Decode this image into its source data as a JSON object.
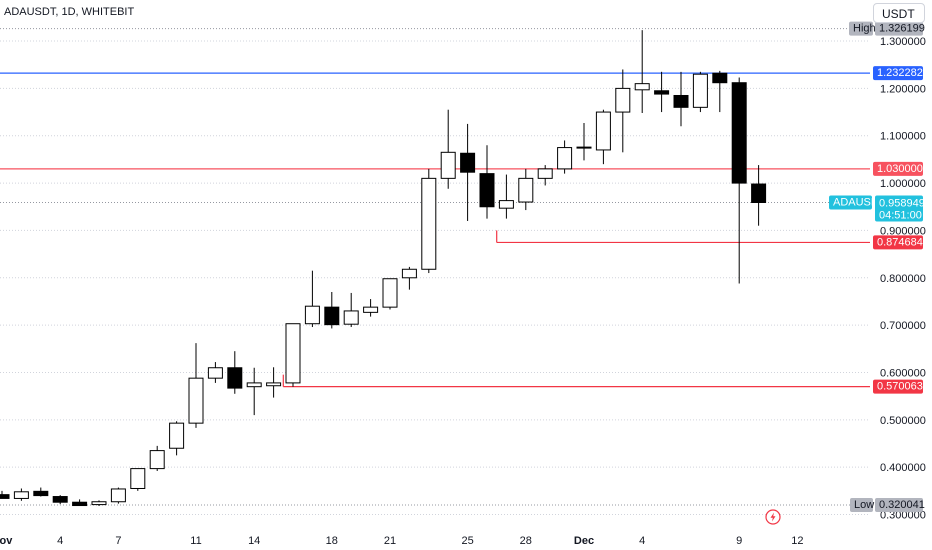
{
  "header": {
    "symbol_line": "ADAUSDT, 1D, WHITEBIT",
    "currency_button": "USDT"
  },
  "colors": {
    "up_body": "#ffffff",
    "down_body": "#000000",
    "candle_outline": "#000000",
    "blue_line": "#2962ff",
    "red_line": "#f23645",
    "pink_line": "#f7525f",
    "current_price_tag": "#22c1de",
    "high_low_tag": "#b2b5be",
    "grid": "#d1d4dc"
  },
  "icons": {
    "bottom_marker": "lightning-bolt-icon"
  },
  "chart_data": {
    "type": "candlestick",
    "symbol": "ADAUSDT",
    "interval": "1D",
    "exchange": "WHITEBIT",
    "quote_currency": "USDT",
    "y_range": [
      0.28,
      1.355
    ],
    "y_ticks": [
      {
        "value": 0.3,
        "label": "0.300000"
      },
      {
        "value": 0.4,
        "label": "0.400000"
      },
      {
        "value": 0.5,
        "label": "0.500000"
      },
      {
        "value": 0.6,
        "label": "0.600000"
      },
      {
        "value": 0.7,
        "label": "0.700000"
      },
      {
        "value": 0.8,
        "label": "0.800000"
      },
      {
        "value": 0.9,
        "label": "0.900000"
      },
      {
        "value": 1.0,
        "label": "1.000000"
      },
      {
        "value": 1.1,
        "label": "1.100000"
      },
      {
        "value": 1.2,
        "label": "1.200000"
      },
      {
        "value": 1.3,
        "label": "1.300000"
      }
    ],
    "x_labels": [
      {
        "day": 0,
        "label": "Nov",
        "month": true
      },
      {
        "day": 3,
        "label": "4",
        "month": false
      },
      {
        "day": 6,
        "label": "7",
        "month": false
      },
      {
        "day": 10,
        "label": "11",
        "month": false
      },
      {
        "day": 13,
        "label": "14",
        "month": false
      },
      {
        "day": 17,
        "label": "18",
        "month": false
      },
      {
        "day": 20,
        "label": "21",
        "month": false
      },
      {
        "day": 24,
        "label": "25",
        "month": false
      },
      {
        "day": 27,
        "label": "28",
        "month": false
      },
      {
        "day": 30,
        "label": "Dec",
        "month": true
      },
      {
        "day": 33,
        "label": "4",
        "month": false
      },
      {
        "day": 38,
        "label": "9",
        "month": false
      },
      {
        "day": 41,
        "label": "12",
        "month": false
      }
    ],
    "candles": [
      {
        "day": 0,
        "date": "Nov 1",
        "open": 0.342,
        "high": 0.35,
        "low": 0.335,
        "close": 0.334
      },
      {
        "day": 1,
        "date": "Nov 2",
        "open": 0.334,
        "high": 0.355,
        "low": 0.329,
        "close": 0.348
      },
      {
        "day": 2,
        "date": "Nov 3",
        "open": 0.349,
        "high": 0.357,
        "low": 0.338,
        "close": 0.34
      },
      {
        "day": 3,
        "date": "Nov 4",
        "open": 0.338,
        "high": 0.341,
        "low": 0.322,
        "close": 0.326
      },
      {
        "day": 4,
        "date": "Nov 5",
        "open": 0.326,
        "high": 0.332,
        "low": 0.32,
        "close": 0.319
      },
      {
        "day": 5,
        "date": "Nov 6",
        "open": 0.321,
        "high": 0.33,
        "low": 0.318,
        "close": 0.327
      },
      {
        "day": 6,
        "date": "Nov 7",
        "open": 0.327,
        "high": 0.357,
        "low": 0.323,
        "close": 0.354
      },
      {
        "day": 7,
        "date": "Nov 8",
        "open": 0.355,
        "high": 0.395,
        "low": 0.35,
        "close": 0.397
      },
      {
        "day": 8,
        "date": "Nov 9",
        "open": 0.397,
        "high": 0.445,
        "low": 0.392,
        "close": 0.435
      },
      {
        "day": 9,
        "date": "Nov 10",
        "open": 0.44,
        "high": 0.497,
        "low": 0.425,
        "close": 0.493
      },
      {
        "day": 10,
        "date": "Nov 11",
        "open": 0.493,
        "high": 0.662,
        "low": 0.483,
        "close": 0.588
      },
      {
        "day": 11,
        "date": "Nov 12",
        "open": 0.588,
        "high": 0.622,
        "low": 0.578,
        "close": 0.61
      },
      {
        "day": 12,
        "date": "Nov 13",
        "open": 0.61,
        "high": 0.645,
        "low": 0.555,
        "close": 0.567
      },
      {
        "day": 13,
        "date": "Nov 14",
        "open": 0.57,
        "high": 0.61,
        "low": 0.51,
        "close": 0.578
      },
      {
        "day": 14,
        "date": "Nov 15",
        "open": 0.572,
        "high": 0.611,
        "low": 0.547,
        "close": 0.578
      },
      {
        "day": 15,
        "date": "Nov 16",
        "open": 0.578,
        "high": 0.703,
        "low": 0.57,
        "close": 0.703
      },
      {
        "day": 16,
        "date": "Nov 17",
        "open": 0.703,
        "high": 0.815,
        "low": 0.696,
        "close": 0.74
      },
      {
        "day": 17,
        "date": "Nov 18",
        "open": 0.738,
        "high": 0.77,
        "low": 0.693,
        "close": 0.701
      },
      {
        "day": 18,
        "date": "Nov 19",
        "open": 0.702,
        "high": 0.768,
        "low": 0.696,
        "close": 0.73
      },
      {
        "day": 19,
        "date": "Nov 20",
        "open": 0.727,
        "high": 0.755,
        "low": 0.718,
        "close": 0.738
      },
      {
        "day": 20,
        "date": "Nov 21",
        "open": 0.738,
        "high": 0.79,
        "low": 0.733,
        "close": 0.798
      },
      {
        "day": 21,
        "date": "Nov 22",
        "open": 0.8,
        "high": 0.823,
        "low": 0.775,
        "close": 0.818
      },
      {
        "day": 22,
        "date": "Nov 23",
        "open": 0.818,
        "high": 1.03,
        "low": 0.81,
        "close": 1.01
      },
      {
        "day": 23,
        "date": "Nov 24",
        "open": 1.01,
        "high": 1.155,
        "low": 0.988,
        "close": 1.065
      },
      {
        "day": 24,
        "date": "Nov 25",
        "open": 1.063,
        "high": 1.125,
        "low": 0.92,
        "close": 1.023
      },
      {
        "day": 25,
        "date": "Nov 26",
        "open": 1.02,
        "high": 1.08,
        "low": 0.925,
        "close": 0.95
      },
      {
        "day": 26,
        "date": "Nov 27",
        "open": 0.947,
        "high": 1.018,
        "low": 0.925,
        "close": 0.963
      },
      {
        "day": 27,
        "date": "Nov 28",
        "open": 0.96,
        "high": 1.03,
        "low": 0.943,
        "close": 1.01
      },
      {
        "day": 28,
        "date": "Nov 29",
        "open": 1.01,
        "high": 1.038,
        "low": 0.995,
        "close": 1.03
      },
      {
        "day": 29,
        "date": "Nov 30",
        "open": 1.03,
        "high": 1.09,
        "low": 1.02,
        "close": 1.075
      },
      {
        "day": 30,
        "date": "Dec 1",
        "open": 1.075,
        "high": 1.127,
        "low": 1.048,
        "close": 1.076
      },
      {
        "day": 31,
        "date": "Dec 2",
        "open": 1.07,
        "high": 1.155,
        "low": 1.04,
        "close": 1.15
      },
      {
        "day": 32,
        "date": "Dec 3",
        "open": 1.15,
        "high": 1.24,
        "low": 1.065,
        "close": 1.2
      },
      {
        "day": 33,
        "date": "Dec 4",
        "open": 1.197,
        "high": 1.323,
        "low": 1.148,
        "close": 1.21
      },
      {
        "day": 34,
        "date": "Dec 5",
        "open": 1.195,
        "high": 1.235,
        "low": 1.15,
        "close": 1.188
      },
      {
        "day": 35,
        "date": "Dec 6",
        "open": 1.185,
        "high": 1.235,
        "low": 1.12,
        "close": 1.16
      },
      {
        "day": 36,
        "date": "Dec 7",
        "open": 1.16,
        "high": 1.235,
        "low": 1.15,
        "close": 1.23
      },
      {
        "day": 37,
        "date": "Dec 8",
        "open": 1.232,
        "high": 1.237,
        "low": 1.15,
        "close": 1.212
      },
      {
        "day": 38,
        "date": "Dec 9",
        "open": 1.212,
        "high": 1.223,
        "low": 0.788,
        "close": 1.0
      },
      {
        "day": 39,
        "date": "Dec 10",
        "open": 0.998,
        "high": 1.038,
        "low": 0.91,
        "close": 0.959
      }
    ],
    "price_levels": [
      {
        "id": "level-1232",
        "value": 1.232282,
        "label": "1.232282",
        "color": "#2962ff",
        "from_day": -1
      },
      {
        "id": "level-1030",
        "value": 1.03,
        "label": "1.030000",
        "color": "#f7525f",
        "from_day": -1
      },
      {
        "id": "level-0874",
        "value": 0.874684,
        "label": "0.874684",
        "color": "#f23645",
        "from_day": 25.5
      },
      {
        "id": "level-0570",
        "value": 0.570063,
        "label": "0.570063",
        "color": "#f23645",
        "from_day": 14.5
      }
    ],
    "current_price": {
      "symbol": "ADAUSDT",
      "value": 0.958949,
      "label": "0.958949",
      "countdown": "04:51:00"
    },
    "high": {
      "text": "High",
      "value": 1.326199,
      "label": "1.326199"
    },
    "low": {
      "text": "Low",
      "value": 0.320041,
      "label": "0.320041"
    }
  }
}
